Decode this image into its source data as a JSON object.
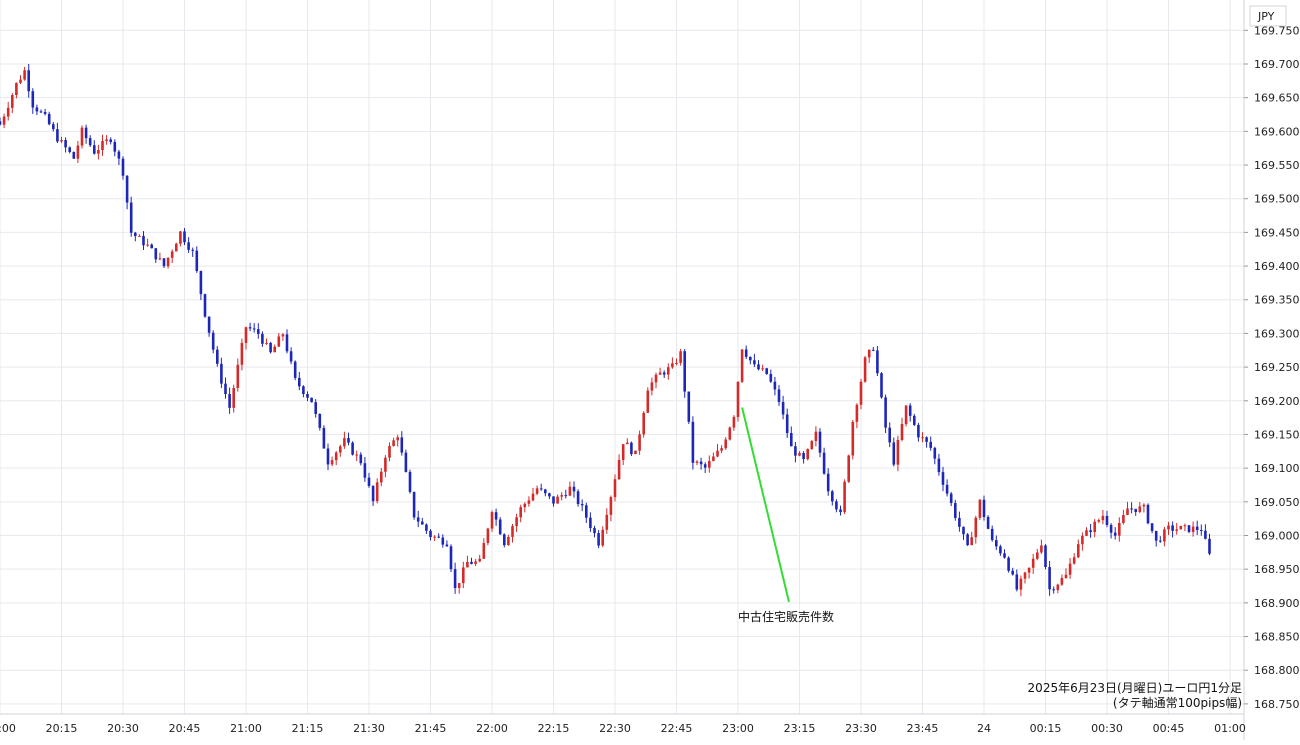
{
  "chart_data": {
    "type": "candlestick",
    "currency_label": "JPY",
    "caption_line1": "2025年6月23日(月曜日)ユーロ円1分足",
    "caption_line2": "(タテ軸通常100pips幅)",
    "annotation": {
      "label": "中古住宅販売件数",
      "time": "23:00",
      "price": 169.19
    },
    "x_ticks": [
      {
        "t": 0,
        "label": "20:00"
      },
      {
        "t": 15,
        "label": "20:15"
      },
      {
        "t": 30,
        "label": "20:30"
      },
      {
        "t": 45,
        "label": "20:45"
      },
      {
        "t": 60,
        "label": "21:00"
      },
      {
        "t": 75,
        "label": "21:15"
      },
      {
        "t": 90,
        "label": "21:30"
      },
      {
        "t": 105,
        "label": "21:45"
      },
      {
        "t": 120,
        "label": "22:00"
      },
      {
        "t": 135,
        "label": "22:15"
      },
      {
        "t": 150,
        "label": "22:30"
      },
      {
        "t": 165,
        "label": "22:45"
      },
      {
        "t": 180,
        "label": "23:00"
      },
      {
        "t": 195,
        "label": "23:15"
      },
      {
        "t": 210,
        "label": "23:30"
      },
      {
        "t": 225,
        "label": "23:45"
      },
      {
        "t": 240,
        "label": "24"
      },
      {
        "t": 255,
        "label": "00:15"
      },
      {
        "t": 270,
        "label": "00:30"
      },
      {
        "t": 285,
        "label": "00:45"
      },
      {
        "t": 300,
        "label": "01:00"
      }
    ],
    "y_ticks": [
      "169.750",
      "169.700",
      "169.650",
      "169.600",
      "169.550",
      "169.500",
      "169.450",
      "169.400",
      "169.350",
      "169.300",
      "169.250",
      "169.200",
      "169.150",
      "169.100",
      "169.050",
      "169.000",
      "168.950",
      "168.900",
      "168.850",
      "168.800",
      "168.750"
    ],
    "ylim": [
      168.735,
      169.795
    ],
    "x_range_minutes": [
      0,
      305
    ],
    "colors": {
      "up": "#d42a2a",
      "down": "#1c27b8",
      "grid": "#e6e9ee",
      "annotation_line": "#33dd33"
    },
    "anchors": [
      [
        0,
        169.61
      ],
      [
        4,
        169.67
      ],
      [
        6,
        169.69
      ],
      [
        8,
        169.64
      ],
      [
        11,
        169.62
      ],
      [
        14,
        169.59
      ],
      [
        18,
        169.56
      ],
      [
        20,
        169.6
      ],
      [
        23,
        169.57
      ],
      [
        27,
        169.59
      ],
      [
        30,
        169.54
      ],
      [
        32,
        169.45
      ],
      [
        36,
        169.43
      ],
      [
        40,
        169.4
      ],
      [
        44,
        169.45
      ],
      [
        47,
        169.42
      ],
      [
        50,
        169.33
      ],
      [
        53,
        169.25
      ],
      [
        56,
        169.19
      ],
      [
        58,
        169.25
      ],
      [
        60,
        169.31
      ],
      [
        63,
        169.3
      ],
      [
        66,
        169.27
      ],
      [
        69,
        169.3
      ],
      [
        72,
        169.23
      ],
      [
        76,
        169.2
      ],
      [
        80,
        169.11
      ],
      [
        84,
        169.14
      ],
      [
        88,
        169.11
      ],
      [
        91,
        169.05
      ],
      [
        94,
        169.12
      ],
      [
        97,
        169.15
      ],
      [
        101,
        169.03
      ],
      [
        105,
        169.0
      ],
      [
        109,
        168.99
      ],
      [
        111,
        168.92
      ],
      [
        114,
        168.96
      ],
      [
        117,
        168.96
      ],
      [
        120,
        169.04
      ],
      [
        123,
        168.99
      ],
      [
        127,
        169.04
      ],
      [
        131,
        169.07
      ],
      [
        135,
        169.05
      ],
      [
        139,
        169.07
      ],
      [
        142,
        169.04
      ],
      [
        146,
        168.99
      ],
      [
        149,
        169.06
      ],
      [
        152,
        169.14
      ],
      [
        155,
        169.12
      ],
      [
        158,
        169.22
      ],
      [
        161,
        169.24
      ],
      [
        164,
        169.25
      ],
      [
        166,
        169.27
      ],
      [
        169,
        169.11
      ],
      [
        172,
        169.1
      ],
      [
        176,
        169.13
      ],
      [
        179,
        169.18
      ],
      [
        181,
        169.28
      ],
      [
        184,
        169.25
      ],
      [
        187,
        169.24
      ],
      [
        190,
        169.2
      ],
      [
        193,
        169.13
      ],
      [
        196,
        169.11
      ],
      [
        199,
        169.15
      ],
      [
        202,
        169.07
      ],
      [
        205,
        169.03
      ],
      [
        208,
        169.17
      ],
      [
        211,
        169.26
      ],
      [
        213,
        169.28
      ],
      [
        216,
        169.16
      ],
      [
        218,
        169.11
      ],
      [
        221,
        169.19
      ],
      [
        224,
        169.15
      ],
      [
        227,
        169.13
      ],
      [
        230,
        169.08
      ],
      [
        233,
        169.03
      ],
      [
        236,
        168.98
      ],
      [
        239,
        169.05
      ],
      [
        242,
        168.99
      ],
      [
        245,
        168.97
      ],
      [
        248,
        168.92
      ],
      [
        251,
        168.95
      ],
      [
        254,
        168.99
      ],
      [
        256,
        168.92
      ],
      [
        260,
        168.94
      ],
      [
        263,
        168.99
      ],
      [
        266,
        169.01
      ],
      [
        269,
        169.03
      ],
      [
        272,
        169.0
      ],
      [
        275,
        169.04
      ],
      [
        279,
        169.04
      ],
      [
        282,
        168.99
      ],
      [
        285,
        169.01
      ],
      [
        289,
        169.01
      ],
      [
        293,
        169.01
      ],
      [
        295,
        168.97
      ]
    ]
  }
}
